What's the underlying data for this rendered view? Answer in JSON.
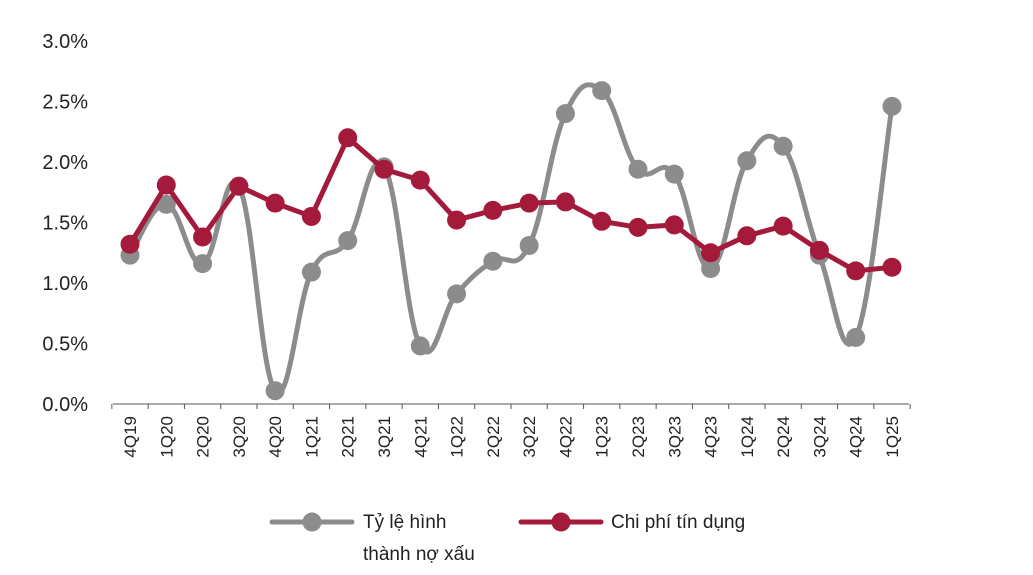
{
  "chart_data": {
    "type": "line",
    "categories": [
      "4Q19",
      "1Q20",
      "2Q20",
      "3Q20",
      "4Q20",
      "1Q21",
      "2Q21",
      "3Q21",
      "4Q21",
      "1Q22",
      "2Q22",
      "3Q22",
      "4Q22",
      "1Q23",
      "2Q23",
      "3Q23",
      "4Q23",
      "1Q24",
      "2Q24",
      "3Q24",
      "4Q24",
      "1Q25"
    ],
    "y_ticks": [
      "0.0%",
      "0.5%",
      "1.0%",
      "1.5%",
      "2.0%",
      "2.5%",
      "3.0%"
    ],
    "ylim": [
      0,
      3.0
    ],
    "y_unit": "%",
    "grid": false,
    "legend_position": "bottom",
    "series": [
      {
        "name_lines": [
          "Tỷ lệ hình",
          "thành nợ xấu"
        ],
        "color": "#8c8c8c",
        "smooth": true,
        "values": [
          1.23,
          1.65,
          1.16,
          1.8,
          0.11,
          1.09,
          1.35,
          1.96,
          0.48,
          0.91,
          1.18,
          1.31,
          2.4,
          2.59,
          1.94,
          1.9,
          1.12,
          2.01,
          2.13,
          1.23,
          0.55,
          2.46
        ]
      },
      {
        "name_lines": [
          "Chi phí tín dụng"
        ],
        "color": "#a31a3a",
        "smooth": false,
        "values": [
          1.32,
          1.81,
          1.38,
          1.8,
          1.66,
          1.55,
          2.2,
          1.94,
          1.85,
          1.52,
          1.6,
          1.66,
          1.67,
          1.51,
          1.46,
          1.48,
          1.25,
          1.39,
          1.47,
          1.27,
          1.1,
          1.13
        ]
      }
    ]
  }
}
